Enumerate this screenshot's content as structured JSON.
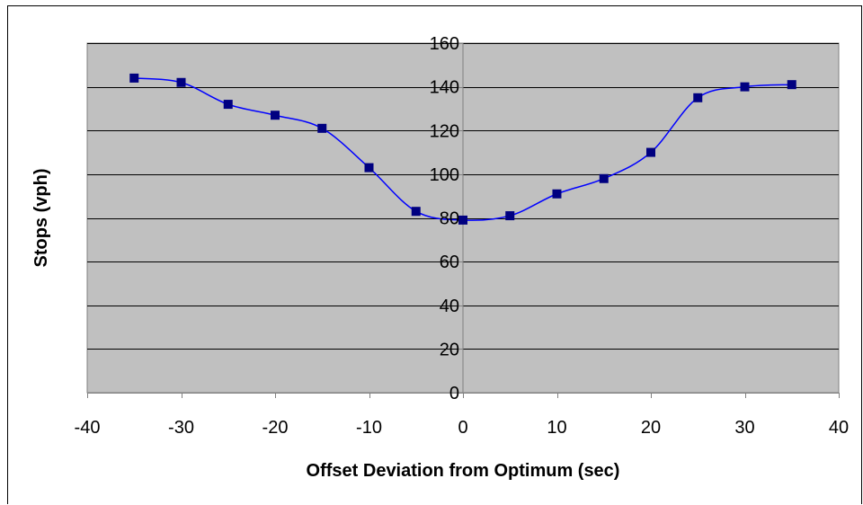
{
  "chart_data": {
    "type": "line",
    "title": "",
    "xlabel": "Offset Deviation from Optimum (sec)",
    "ylabel": "Stops (vph)",
    "xlim": [
      -40,
      40
    ],
    "ylim": [
      0,
      160
    ],
    "x_ticks": [
      -40,
      -30,
      -20,
      -10,
      0,
      10,
      20,
      30,
      40
    ],
    "y_ticks": [
      0,
      20,
      40,
      60,
      80,
      100,
      120,
      140,
      160
    ],
    "grid": true,
    "legend": "none",
    "smooth": true,
    "plot_background": "#c0c0c0",
    "line_color": "#0000ff",
    "marker_color": "#000080",
    "marker": "square",
    "series": [
      {
        "x": [
          -35,
          -30,
          -25,
          -20,
          -15,
          -10,
          -5,
          0,
          5,
          10,
          15,
          20,
          25,
          30,
          35
        ],
        "y": [
          144,
          142,
          132,
          127,
          121,
          103,
          83,
          79,
          81,
          91,
          98,
          110,
          135,
          140,
          141
        ]
      }
    ]
  }
}
